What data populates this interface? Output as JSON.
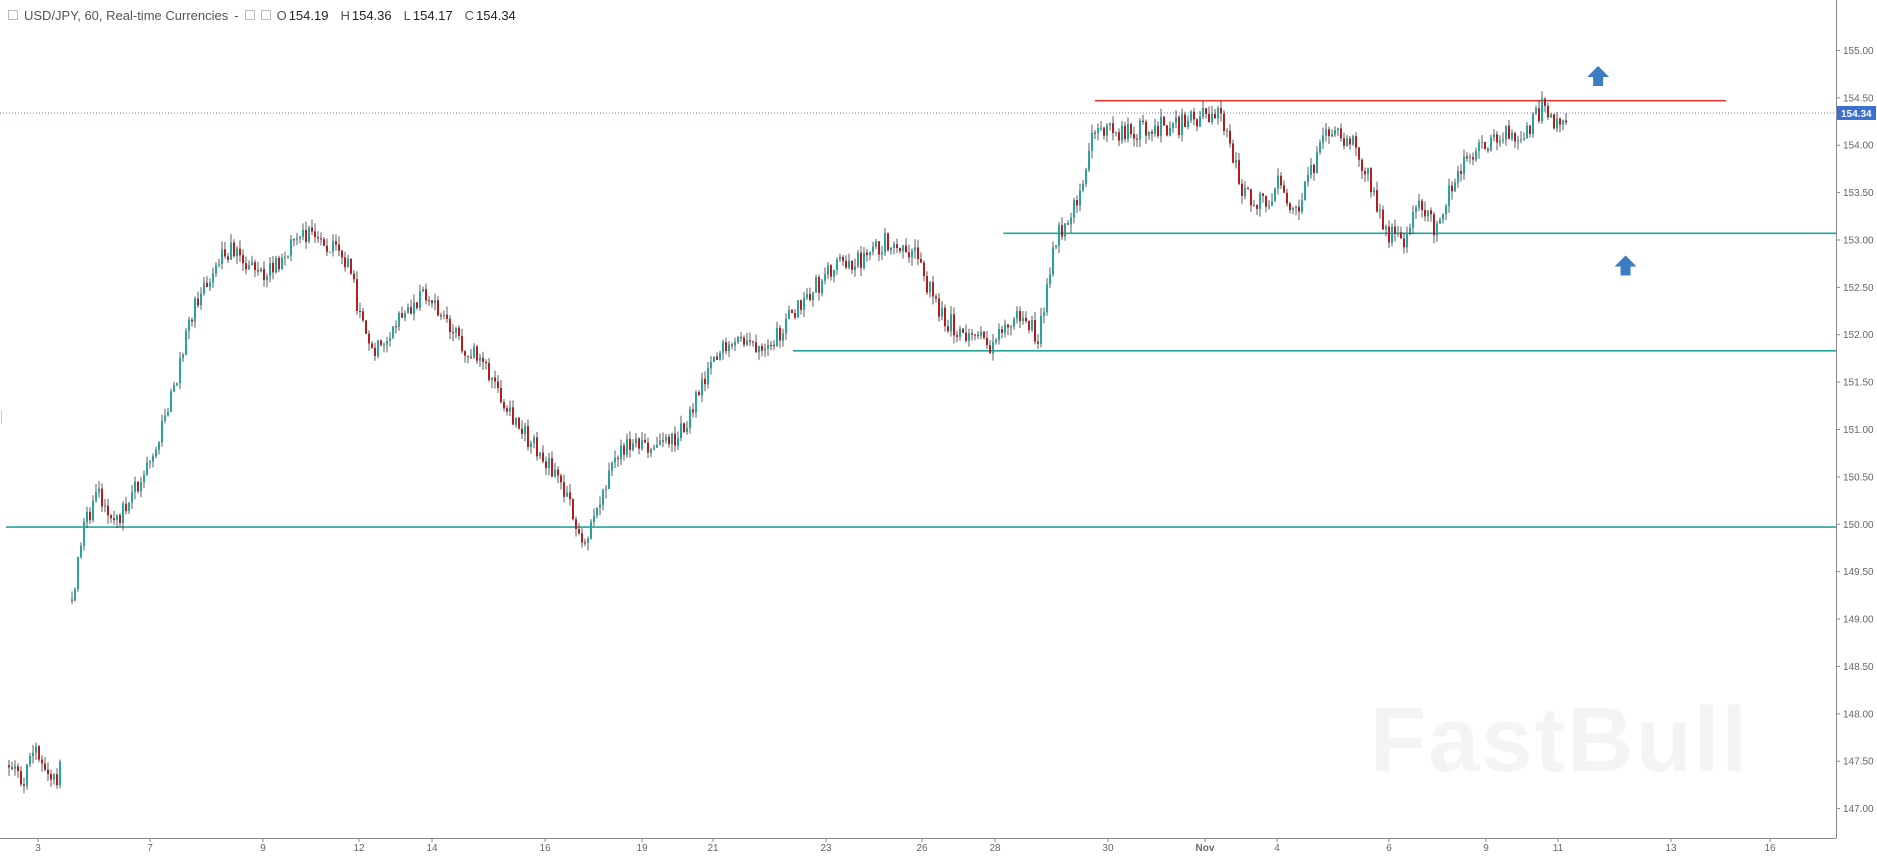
{
  "header": {
    "symbol_line": "USD/JPY, 60, Real-time Currencies",
    "open_label": "O",
    "open_value": "154.19",
    "high_label": "H",
    "high_value": "154.36",
    "low_label": "L",
    "low_value": "154.17",
    "close_label": "C",
    "close_value": "154.34"
  },
  "watermark": "FastBull",
  "chart_data": {
    "type": "candlestick",
    "instrument": "USD/JPY",
    "interval": "60",
    "ylim": [
      146.7,
      155.3
    ],
    "y_ticks": [
      "147.00",
      "147.50",
      "148.00",
      "148.50",
      "149.00",
      "149.50",
      "150.00",
      "150.50",
      "151.00",
      "151.50",
      "152.00",
      "152.50",
      "153.00",
      "153.50",
      "154.00",
      "154.50",
      "155.00"
    ],
    "x_ticks": [
      "3",
      "7",
      "9",
      "12",
      "14",
      "16",
      "19",
      "21",
      "23",
      "26",
      "28",
      "30",
      "Nov",
      "4",
      "6",
      "9",
      "11",
      "13",
      "16"
    ],
    "last_price_label": "154.34",
    "last_price": 154.34,
    "price_path": [
      {
        "x": 0.0,
        "y": 147.4
      },
      {
        "x": 0.3,
        "y": 147.3
      },
      {
        "x": 0.5,
        "y": 147.7
      },
      {
        "x": 0.7,
        "y": 147.4
      },
      {
        "x": 0.9,
        "y": 147.3
      },
      {
        "x": 1.0,
        "y": 147.5
      },
      {
        "x": 1.2,
        "y": 149.2
      },
      {
        "x": 1.4,
        "y": 149.9
      },
      {
        "x": 1.7,
        "y": 150.4
      },
      {
        "x": 2.0,
        "y": 150.0
      },
      {
        "x": 2.6,
        "y": 150.5
      },
      {
        "x": 3.0,
        "y": 151.1
      },
      {
        "x": 3.5,
        "y": 152.2
      },
      {
        "x": 3.8,
        "y": 152.6
      },
      {
        "x": 4.2,
        "y": 152.9
      },
      {
        "x": 4.8,
        "y": 152.6
      },
      {
        "x": 5.2,
        "y": 152.8
      },
      {
        "x": 5.6,
        "y": 153.1
      },
      {
        "x": 6.0,
        "y": 153.0
      },
      {
        "x": 6.5,
        "y": 152.7
      },
      {
        "x": 6.9,
        "y": 151.8
      },
      {
        "x": 7.2,
        "y": 152.0
      },
      {
        "x": 7.6,
        "y": 152.3
      },
      {
        "x": 8.0,
        "y": 152.4
      },
      {
        "x": 8.5,
        "y": 152.0
      },
      {
        "x": 9.2,
        "y": 151.6
      },
      {
        "x": 9.8,
        "y": 151.0
      },
      {
        "x": 10.5,
        "y": 150.5
      },
      {
        "x": 11.0,
        "y": 149.8
      },
      {
        "x": 11.3,
        "y": 150.2
      },
      {
        "x": 11.7,
        "y": 150.8
      },
      {
        "x": 12.2,
        "y": 150.8
      },
      {
        "x": 12.8,
        "y": 150.9
      },
      {
        "x": 13.4,
        "y": 151.6
      },
      {
        "x": 13.8,
        "y": 152.0
      },
      {
        "x": 14.2,
        "y": 151.9
      },
      {
        "x": 14.7,
        "y": 152.0
      },
      {
        "x": 15.2,
        "y": 152.4
      },
      {
        "x": 15.8,
        "y": 152.7
      },
      {
        "x": 16.4,
        "y": 152.8
      },
      {
        "x": 16.8,
        "y": 153.0
      },
      {
        "x": 17.3,
        "y": 152.9
      },
      {
        "x": 17.8,
        "y": 152.2
      },
      {
        "x": 18.3,
        "y": 152.0
      },
      {
        "x": 18.8,
        "y": 151.9
      },
      {
        "x": 19.3,
        "y": 152.2
      },
      {
        "x": 19.7,
        "y": 152.0
      },
      {
        "x": 20.0,
        "y": 153.0
      },
      {
        "x": 20.4,
        "y": 153.4
      },
      {
        "x": 20.8,
        "y": 154.2
      },
      {
        "x": 21.3,
        "y": 154.1
      },
      {
        "x": 21.8,
        "y": 154.2
      },
      {
        "x": 22.3,
        "y": 154.2
      },
      {
        "x": 22.8,
        "y": 154.3
      },
      {
        "x": 23.2,
        "y": 154.3
      },
      {
        "x": 23.6,
        "y": 153.5
      },
      {
        "x": 24.0,
        "y": 153.4
      },
      {
        "x": 24.3,
        "y": 153.6
      },
      {
        "x": 24.6,
        "y": 153.3
      },
      {
        "x": 24.9,
        "y": 153.7
      },
      {
        "x": 25.3,
        "y": 154.2
      },
      {
        "x": 25.7,
        "y": 154.0
      },
      {
        "x": 26.0,
        "y": 153.7
      },
      {
        "x": 26.3,
        "y": 153.1
      },
      {
        "x": 26.7,
        "y": 153.0
      },
      {
        "x": 27.0,
        "y": 153.4
      },
      {
        "x": 27.3,
        "y": 153.1
      },
      {
        "x": 27.6,
        "y": 153.6
      },
      {
        "x": 28.0,
        "y": 153.9
      },
      {
        "x": 28.5,
        "y": 154.1
      },
      {
        "x": 29.0,
        "y": 154.1
      },
      {
        "x": 29.3,
        "y": 154.4
      },
      {
        "x": 29.6,
        "y": 154.2
      },
      {
        "x": 29.8,
        "y": 154.34
      }
    ],
    "x_path_domain": [
      0,
      29.8
    ],
    "horizontal_levels": [
      {
        "y": 154.47,
        "color": "#e53935",
        "from_frac": 0.595,
        "to_frac": 0.94
      },
      {
        "y": 153.07,
        "color": "#26a69a",
        "from_frac": 0.545,
        "to_frac": 1.0
      },
      {
        "y": 151.83,
        "color": "#26a69a",
        "from_frac": 0.43,
        "to_frac": 1.0
      },
      {
        "y": 149.97,
        "color": "#26a69a",
        "from_frac": 0.0,
        "to_frac": 1.0
      }
    ],
    "arrows": [
      {
        "x_frac": 0.87,
        "y": 154.72,
        "color": "#3b7dc4",
        "direction": "up"
      },
      {
        "x_frac": 0.885,
        "y": 152.72,
        "color": "#3b7dc4",
        "direction": "up"
      }
    ],
    "colors": {
      "up": "#26a69a",
      "down": "#b71c1c",
      "wick": "#333333",
      "axis_text": "#666666",
      "last_price_bg": "#3b6fd1"
    }
  }
}
